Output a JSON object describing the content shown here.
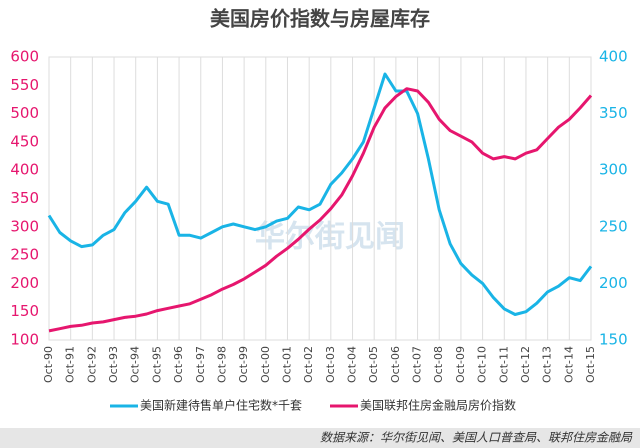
{
  "chart_data": {
    "type": "line",
    "title": "美国房价指数与房屋库存",
    "x": [
      1990.75,
      1991.25,
      1991.75,
      1992.25,
      1992.75,
      1993.25,
      1993.75,
      1994.25,
      1994.75,
      1995.25,
      1995.75,
      1996.25,
      1996.75,
      1997.25,
      1997.75,
      1998.25,
      1998.75,
      1999.25,
      1999.75,
      2000.25,
      2000.75,
      2001.25,
      2001.75,
      2002.25,
      2002.75,
      2003.25,
      2003.75,
      2004.25,
      2004.75,
      2005.25,
      2005.75,
      2006.25,
      2006.75,
      2007.25,
      2007.75,
      2008.25,
      2008.75,
      2009.25,
      2009.75,
      2010.25,
      2010.75,
      2011.25,
      2011.75,
      2012.25,
      2012.75,
      2013.25,
      2013.75,
      2014.25,
      2014.75,
      2015.25,
      2015.75
    ],
    "series": [
      {
        "name": "美国新建待售单户住宅数*千套",
        "color": "#19b4e6",
        "axis": "y",
        "values": [
          320,
          290,
          275,
          265,
          268,
          285,
          295,
          325,
          345,
          370,
          345,
          340,
          285,
          285,
          280,
          290,
          300,
          305,
          300,
          295,
          300,
          310,
          315,
          335,
          330,
          340,
          375,
          395,
          420,
          450,
          510,
          570,
          540,
          540,
          500,
          420,
          330,
          270,
          235,
          215,
          200,
          175,
          155,
          145,
          150,
          165,
          185,
          195,
          210,
          205,
          230
        ]
      },
      {
        "name": "美国联邦住房金融局房价指数",
        "color": "#e6166e",
        "axis": "y2",
        "values": [
          158,
          160,
          162,
          163,
          165,
          166,
          168,
          170,
          171,
          173,
          176,
          178,
          180,
          182,
          186,
          190,
          195,
          199,
          204,
          210,
          216,
          224,
          231,
          239,
          248,
          256,
          266,
          278,
          295,
          315,
          338,
          355,
          365,
          372,
          370,
          360,
          345,
          335,
          330,
          325,
          315,
          310,
          312,
          310,
          315,
          318,
          328,
          338,
          345,
          355,
          366
        ]
      }
    ],
    "xlim": [
      1990.75,
      2015.75
    ],
    "xticks": [
      {
        "value": 1990.75,
        "label": "Oct-90"
      },
      {
        "value": 1991.75,
        "label": "Oct-91"
      },
      {
        "value": 1992.75,
        "label": "Oct-92"
      },
      {
        "value": 1993.75,
        "label": "Oct-93"
      },
      {
        "value": 1994.75,
        "label": "Oct-94"
      },
      {
        "value": 1995.75,
        "label": "Oct-95"
      },
      {
        "value": 1996.75,
        "label": "Oct-96"
      },
      {
        "value": 1997.75,
        "label": "Oct-97"
      },
      {
        "value": 1998.75,
        "label": "Oct-98"
      },
      {
        "value": 1999.75,
        "label": "Oct-99"
      },
      {
        "value": 2000.75,
        "label": "Oct-00"
      },
      {
        "value": 2001.75,
        "label": "Oct-01"
      },
      {
        "value": 2002.75,
        "label": "Oct-02"
      },
      {
        "value": 2003.75,
        "label": "Oct-03"
      },
      {
        "value": 2004.75,
        "label": "Oct-04"
      },
      {
        "value": 2005.75,
        "label": "Oct-05"
      },
      {
        "value": 2006.75,
        "label": "Oct-06"
      },
      {
        "value": 2007.75,
        "label": "Oct-07"
      },
      {
        "value": 2008.75,
        "label": "Oct-08"
      },
      {
        "value": 2009.75,
        "label": "Oct-09"
      },
      {
        "value": 2010.75,
        "label": "Oct-10"
      },
      {
        "value": 2011.75,
        "label": "Oct-11"
      },
      {
        "value": 2012.75,
        "label": "Oct-12"
      },
      {
        "value": 2013.75,
        "label": "Oct-13"
      },
      {
        "value": 2014.75,
        "label": "Oct-14"
      },
      {
        "value": 2015.75,
        "label": "Oct-15"
      }
    ],
    "ylim": [
      100,
      600
    ],
    "yticks": [
      100,
      150,
      200,
      250,
      300,
      350,
      400,
      450,
      500,
      550,
      600
    ],
    "ytick_color": "#e6166e",
    "y2lim": [
      150,
      400
    ],
    "y2ticks": [
      150,
      200,
      250,
      300,
      350,
      400
    ],
    "y2tick_color": "#19b4e6",
    "xgrid": true,
    "legend": "bottom",
    "watermark": "华尔街见闻",
    "source": "数据来源：华尔街见闻、美国人口普查局、联邦住房金融局"
  }
}
